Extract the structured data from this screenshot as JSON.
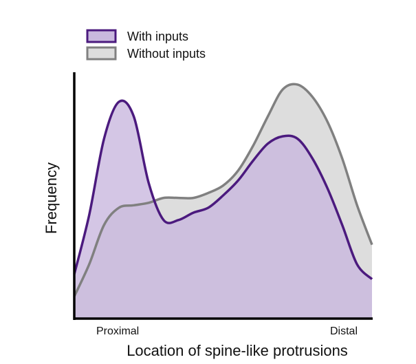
{
  "chart_data": {
    "type": "area",
    "xlabel": "Location of spine-like protrusions",
    "ylabel": "Frequency",
    "x_tick_labels": [
      "Proximal",
      "Distal"
    ],
    "xlim": [
      0,
      1
    ],
    "ylim": [
      0,
      1
    ],
    "legend_position": "top-left",
    "grid": false,
    "series": [
      {
        "name": "With inputs",
        "fill": "#c9b8de",
        "stroke": "#4b1a7e",
        "x": [
          0.0,
          0.05,
          0.1,
          0.15,
          0.2,
          0.25,
          0.3,
          0.35,
          0.4,
          0.45,
          0.5,
          0.55,
          0.6,
          0.65,
          0.7,
          0.75,
          0.8,
          0.85,
          0.9,
          0.95,
          1.0
        ],
        "y": [
          0.18,
          0.42,
          0.73,
          0.88,
          0.82,
          0.55,
          0.4,
          0.4,
          0.43,
          0.45,
          0.5,
          0.56,
          0.64,
          0.71,
          0.74,
          0.73,
          0.65,
          0.53,
          0.38,
          0.22,
          0.16
        ]
      },
      {
        "name": "Without inputs",
        "fill": "#dddddd",
        "stroke": "#808080",
        "x": [
          0.0,
          0.05,
          0.1,
          0.15,
          0.2,
          0.25,
          0.3,
          0.35,
          0.4,
          0.45,
          0.5,
          0.55,
          0.6,
          0.65,
          0.7,
          0.75,
          0.8,
          0.85,
          0.9,
          0.95,
          1.0
        ],
        "y": [
          0.09,
          0.22,
          0.38,
          0.45,
          0.46,
          0.47,
          0.49,
          0.49,
          0.49,
          0.51,
          0.54,
          0.6,
          0.7,
          0.82,
          0.93,
          0.95,
          0.9,
          0.8,
          0.65,
          0.46,
          0.3
        ]
      }
    ]
  }
}
